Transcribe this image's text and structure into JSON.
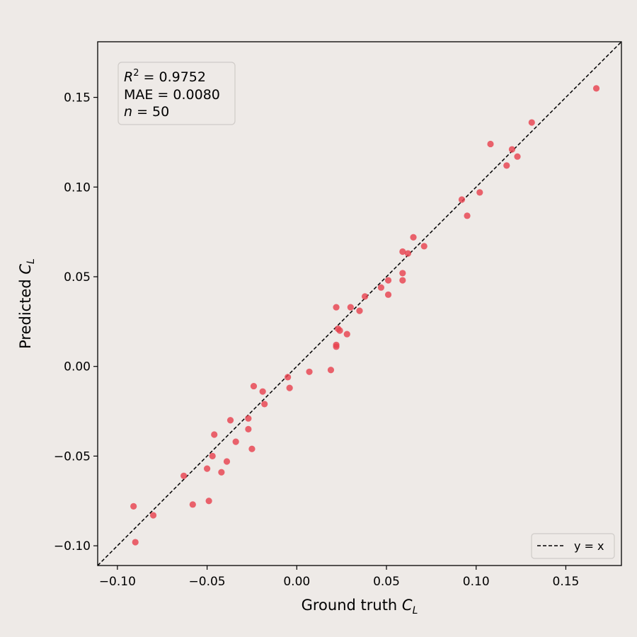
{
  "chart_data": {
    "type": "scatter",
    "title": "",
    "xlabel": "Ground truth C_L",
    "ylabel": "Predicted C_L",
    "xlim": [
      -0.111,
      0.181
    ],
    "ylim": [
      -0.111,
      0.181
    ],
    "x_ticks": [
      "−0.10",
      "−0.05",
      "0.00",
      "0.05",
      "0.10",
      "0.15"
    ],
    "y_ticks": [
      "−0.10",
      "−0.05",
      "0.00",
      "0.05",
      "0.10",
      "0.15"
    ],
    "grid": false,
    "point_color": "#e8434f",
    "stats": {
      "r2_label": "R",
      "r2_sup": "2",
      "r2_value": " = 0.9752",
      "mae": "MAE = 0.0080",
      "n_label": "n",
      "n_value": " = 50"
    },
    "legend": {
      "position": "bottom-right",
      "entries": [
        "y = x"
      ]
    },
    "reference_line": {
      "label": "y = x",
      "style": "dashed"
    },
    "points": [
      [
        -0.091,
        -0.078
      ],
      [
        -0.09,
        -0.098
      ],
      [
        -0.08,
        -0.083
      ],
      [
        -0.063,
        -0.061
      ],
      [
        -0.058,
        -0.077
      ],
      [
        -0.05,
        -0.057
      ],
      [
        -0.049,
        -0.075
      ],
      [
        -0.047,
        -0.05
      ],
      [
        -0.046,
        -0.038
      ],
      [
        -0.042,
        -0.059
      ],
      [
        -0.039,
        -0.053
      ],
      [
        -0.037,
        -0.03
      ],
      [
        -0.034,
        -0.042
      ],
      [
        -0.027,
        -0.029
      ],
      [
        -0.027,
        -0.035
      ],
      [
        -0.025,
        -0.046
      ],
      [
        -0.024,
        -0.011
      ],
      [
        -0.019,
        -0.014
      ],
      [
        -0.018,
        -0.021
      ],
      [
        -0.005,
        -0.006
      ],
      [
        -0.004,
        -0.012
      ],
      [
        0.007,
        -0.003
      ],
      [
        0.019,
        -0.002
      ],
      [
        0.022,
        0.011
      ],
      [
        0.022,
        0.012
      ],
      [
        0.022,
        0.033
      ],
      [
        0.023,
        0.021
      ],
      [
        0.024,
        0.02
      ],
      [
        0.028,
        0.018
      ],
      [
        0.03,
        0.033
      ],
      [
        0.035,
        0.031
      ],
      [
        0.038,
        0.039
      ],
      [
        0.047,
        0.044
      ],
      [
        0.051,
        0.04
      ],
      [
        0.051,
        0.048
      ],
      [
        0.059,
        0.048
      ],
      [
        0.059,
        0.052
      ],
      [
        0.059,
        0.064
      ],
      [
        0.062,
        0.063
      ],
      [
        0.065,
        0.072
      ],
      [
        0.071,
        0.067
      ],
      [
        0.092,
        0.093
      ],
      [
        0.095,
        0.084
      ],
      [
        0.102,
        0.097
      ],
      [
        0.108,
        0.124
      ],
      [
        0.117,
        0.112
      ],
      [
        0.12,
        0.121
      ],
      [
        0.123,
        0.117
      ],
      [
        0.131,
        0.136
      ],
      [
        0.167,
        0.155
      ]
    ]
  }
}
